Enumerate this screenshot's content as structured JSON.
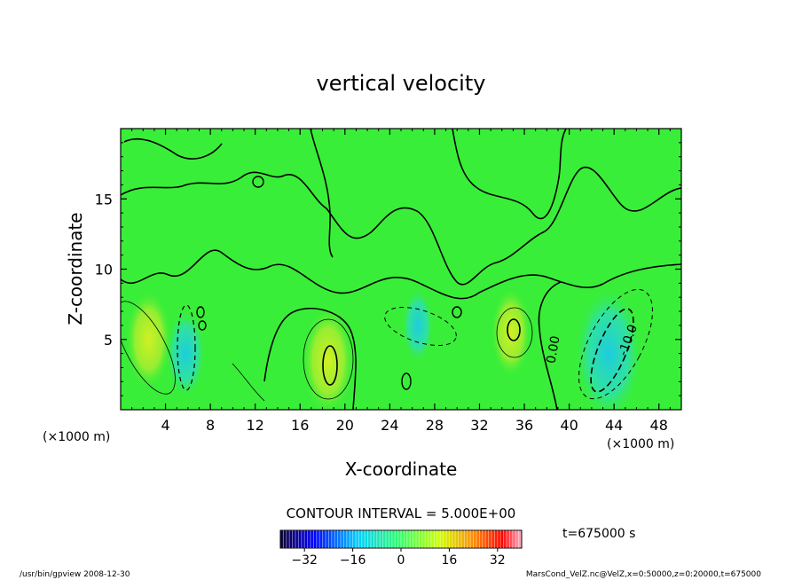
{
  "chart_data": {
    "type": "contour",
    "title": "vertical velocity",
    "xlabel": "X-coordinate",
    "ylabel": "Z-coordinate",
    "x_unit_left": "(×1000 m)",
    "x_unit_right": "(×1000 m)",
    "xlim": [
      0,
      50
    ],
    "ylim": [
      0,
      20
    ],
    "x_ticks": [
      4,
      8,
      12,
      16,
      20,
      24,
      28,
      32,
      36,
      40,
      44,
      48
    ],
    "y_ticks": [
      5,
      10,
      15
    ],
    "contour_interval_text": "CONTOUR INTERVAL = 5.000E+00",
    "contour_labels": [
      "0.00",
      "-10.0"
    ],
    "colorbar": {
      "min": -40,
      "max": 40,
      "ticks": [
        -32,
        -16,
        0,
        16,
        32
      ],
      "colors": [
        "#0b0033",
        "#0000ff",
        "#00cfff",
        "#33ff66",
        "#cfff00",
        "#ff8c00",
        "#ff0000",
        "#ffb0c8"
      ]
    },
    "time_label": "t=675000 s",
    "field_colors": {
      "background": "#39ee38",
      "positive": "#b7f02c",
      "negative": "#21d7c4"
    },
    "features": [
      {
        "kind": "updraft",
        "x": 2.5,
        "z": 5.0,
        "value": 10
      },
      {
        "kind": "downdraft",
        "x": 5.8,
        "z": 4.0,
        "value": -8
      },
      {
        "kind": "updraft",
        "x": 18.5,
        "z": 3.5,
        "value": 12
      },
      {
        "kind": "downdraft",
        "x": 26.5,
        "z": 6.0,
        "value": -5
      },
      {
        "kind": "updraft",
        "x": 34.8,
        "z": 5.5,
        "value": 8
      },
      {
        "kind": "downdraft",
        "x": 43.5,
        "z": 4.0,
        "value": -18
      }
    ]
  },
  "footer": {
    "left": "/usr/bin/gpview   2008-12-30",
    "right": "MarsCond_VelZ.nc@VelZ,x=0:50000,z=0:20000,t=675000"
  }
}
